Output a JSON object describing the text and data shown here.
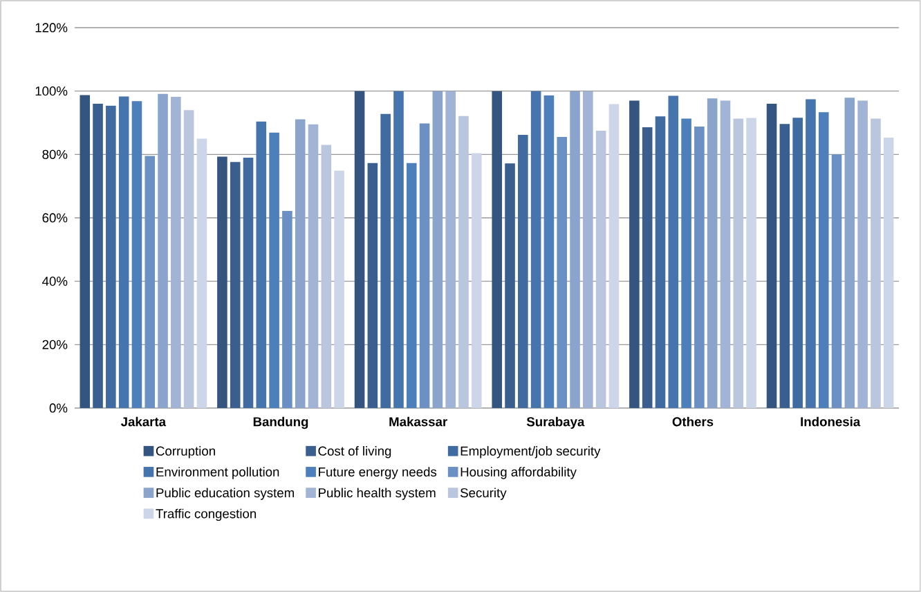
{
  "chart_data": {
    "type": "bar",
    "categories": [
      "Jakarta",
      "Bandung",
      "Makassar",
      "Surabaya",
      "Others",
      "Indonesia"
    ],
    "series": [
      {
        "name": "Corruption",
        "color": "#33557f",
        "values": [
          98.7,
          79.3,
          100,
          100,
          97,
          96
        ]
      },
      {
        "name": "Cost of living",
        "color": "#3a5f8f",
        "values": [
          96,
          77.6,
          77.3,
          77.2,
          88.6,
          89.6
        ]
      },
      {
        "name": "Employment/job security",
        "color": "#3f6ba0",
        "values": [
          95.4,
          79,
          92.8,
          86.2,
          92,
          91.6
        ]
      },
      {
        "name": "Environment pollution",
        "color": "#4674ad",
        "values": [
          98.3,
          90.4,
          100,
          100,
          98.5,
          97.4
        ]
      },
      {
        "name": "Future energy needs",
        "color": "#4d7fba",
        "values": [
          96.8,
          86.9,
          77.3,
          98.6,
          91.3,
          93.3
        ]
      },
      {
        "name": "Housing affordability",
        "color": "#6a90c4",
        "values": [
          79.5,
          62.2,
          89.8,
          85.5,
          88.8,
          80
        ]
      },
      {
        "name": "Public education system",
        "color": "#8ba4cc",
        "values": [
          99.1,
          91.1,
          100,
          100,
          97.7,
          97.9
        ]
      },
      {
        "name": "Public health system",
        "color": "#a2b4d5",
        "values": [
          98.2,
          89.5,
          100,
          100,
          97,
          97
        ]
      },
      {
        "name": "Security",
        "color": "#bac6de",
        "values": [
          94,
          83,
          92.1,
          87.5,
          91.3,
          91.3
        ]
      },
      {
        "name": "Traffic congestion",
        "color": "#cdd6e8",
        "values": [
          85,
          74.9,
          80.4,
          95.9,
          91.5,
          85.3
        ]
      }
    ],
    "ylim": [
      0,
      120
    ],
    "yticks": [
      {
        "value": 0,
        "label": "0%"
      },
      {
        "value": 20,
        "label": "20%"
      },
      {
        "value": 40,
        "label": "40%"
      },
      {
        "value": 60,
        "label": "60%"
      },
      {
        "value": 80,
        "label": "80%"
      },
      {
        "value": 100,
        "label": "100%"
      },
      {
        "value": 120,
        "label": "120%"
      }
    ],
    "grid": "y",
    "legend": "bottom"
  }
}
